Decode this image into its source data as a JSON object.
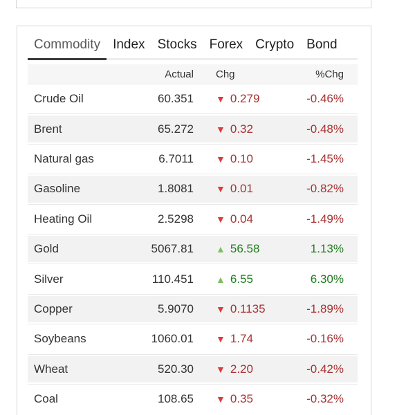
{
  "tabs": [
    {
      "label": "Commodity",
      "active": true
    },
    {
      "label": "Index",
      "active": false
    },
    {
      "label": "Stocks",
      "active": false
    },
    {
      "label": "Forex",
      "active": false
    },
    {
      "label": "Crypto",
      "active": false
    },
    {
      "label": "Bond",
      "active": false
    }
  ],
  "columns": {
    "actual": "Actual",
    "chg": "Chg",
    "pchg": "%Chg"
  },
  "colors": {
    "down_triangle": "#e03a3a",
    "up_triangle": "#7cc05e",
    "down_text": "#a83232",
    "up_text": "#1e7d1e",
    "active_underline": "#3a3a3a"
  },
  "rows": [
    {
      "name": "Crude Oil",
      "actual": "60.351",
      "arrow": "▼",
      "chg": "0.279",
      "pchg": "-0.46%",
      "direction": "down"
    },
    {
      "name": "Brent",
      "actual": "65.272",
      "arrow": "▼",
      "chg": "0.32",
      "pchg": "-0.48%",
      "direction": "down"
    },
    {
      "name": "Natural gas",
      "actual": "6.7011",
      "arrow": "▼",
      "chg": "0.10",
      "pchg": "-1.45%",
      "direction": "down"
    },
    {
      "name": "Gasoline",
      "actual": "1.8081",
      "arrow": "▼",
      "chg": "0.01",
      "pchg": "-0.82%",
      "direction": "down"
    },
    {
      "name": "Heating Oil",
      "actual": "2.5298",
      "arrow": "▼",
      "chg": "0.04",
      "pchg": "-1.49%",
      "direction": "down"
    },
    {
      "name": "Gold",
      "actual": "5067.81",
      "arrow": "▲",
      "chg": "56.58",
      "pchg": "1.13%",
      "direction": "up"
    },
    {
      "name": "Silver",
      "actual": "110.451",
      "arrow": "▲",
      "chg": "6.55",
      "pchg": "6.30%",
      "direction": "up"
    },
    {
      "name": "Copper",
      "actual": "5.9070",
      "arrow": "▼",
      "chg": "0.1135",
      "pchg": "-1.89%",
      "direction": "down"
    },
    {
      "name": "Soybeans",
      "actual": "1060.01",
      "arrow": "▼",
      "chg": "1.74",
      "pchg": "-0.16%",
      "direction": "down"
    },
    {
      "name": "Wheat",
      "actual": "520.30",
      "arrow": "▼",
      "chg": "2.20",
      "pchg": "-0.42%",
      "direction": "down"
    },
    {
      "name": "Coal",
      "actual": "108.65",
      "arrow": "▼",
      "chg": "0.35",
      "pchg": "-0.32%",
      "direction": "down"
    }
  ]
}
